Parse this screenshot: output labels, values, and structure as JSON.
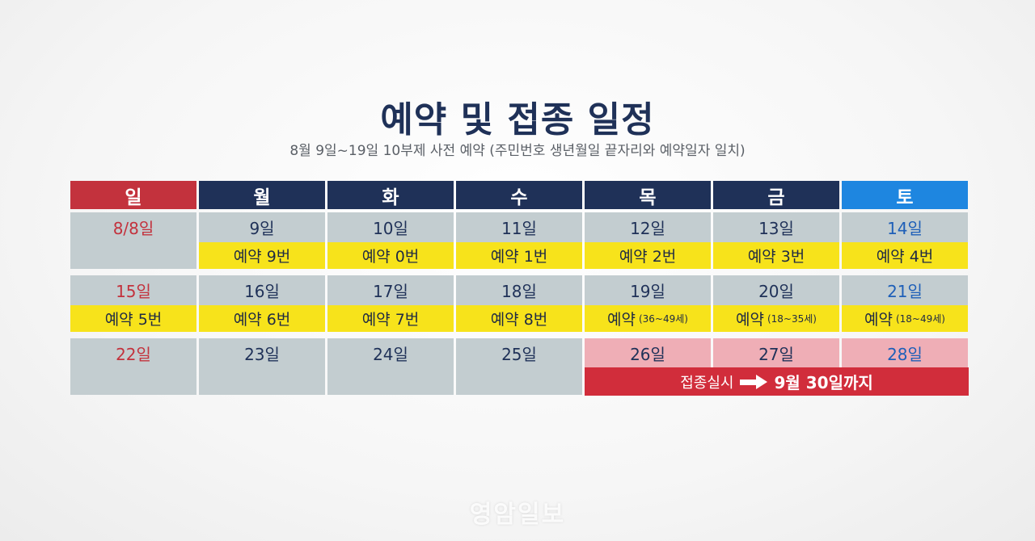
{
  "title": "예약 및 접종 일정",
  "subtitle": "8월 9일~19일 10부제 사전 예약 (주민번호 생년월일 끝자리와 예약일자 일치)",
  "weekdays": [
    "일",
    "월",
    "화",
    "수",
    "목",
    "금",
    "토"
  ],
  "weeks": [
    [
      {
        "date": "8/8일",
        "res": ""
      },
      {
        "date": "9일",
        "res": "예약 9번"
      },
      {
        "date": "10일",
        "res": "예약 0번"
      },
      {
        "date": "11일",
        "res": "예약 1번"
      },
      {
        "date": "12일",
        "res": "예약 2번"
      },
      {
        "date": "13일",
        "res": "예약 3번"
      },
      {
        "date": "14일",
        "res": "예약 4번"
      }
    ],
    [
      {
        "date": "15일",
        "res": "예약 5번"
      },
      {
        "date": "16일",
        "res": "예약 6번"
      },
      {
        "date": "17일",
        "res": "예약 7번"
      },
      {
        "date": "18일",
        "res": "예약 8번"
      },
      {
        "date": "19일",
        "res": "예약",
        "age": "(36~49세)"
      },
      {
        "date": "20일",
        "res": "예약",
        "age": "(18~35세)"
      },
      {
        "date": "21일",
        "res": "예약",
        "age": "(18~49세)"
      }
    ],
    [
      {
        "date": "22일"
      },
      {
        "date": "23일"
      },
      {
        "date": "24일"
      },
      {
        "date": "25일"
      },
      {
        "date": "26일"
      },
      {
        "date": "27일"
      },
      {
        "date": "28일"
      }
    ]
  ],
  "vaccination": {
    "label": "접종실시",
    "until": "9월 30일까지"
  },
  "logo": "영암일보",
  "colors": {
    "navy": "#1f3158",
    "sunday": "#c3323d",
    "saturday": "#1e86e0",
    "reservation": "#f7e31b",
    "vaccination": "#d12d3b",
    "vaccination_days": "#efaeb6",
    "cell": "#c3cdd0"
  }
}
